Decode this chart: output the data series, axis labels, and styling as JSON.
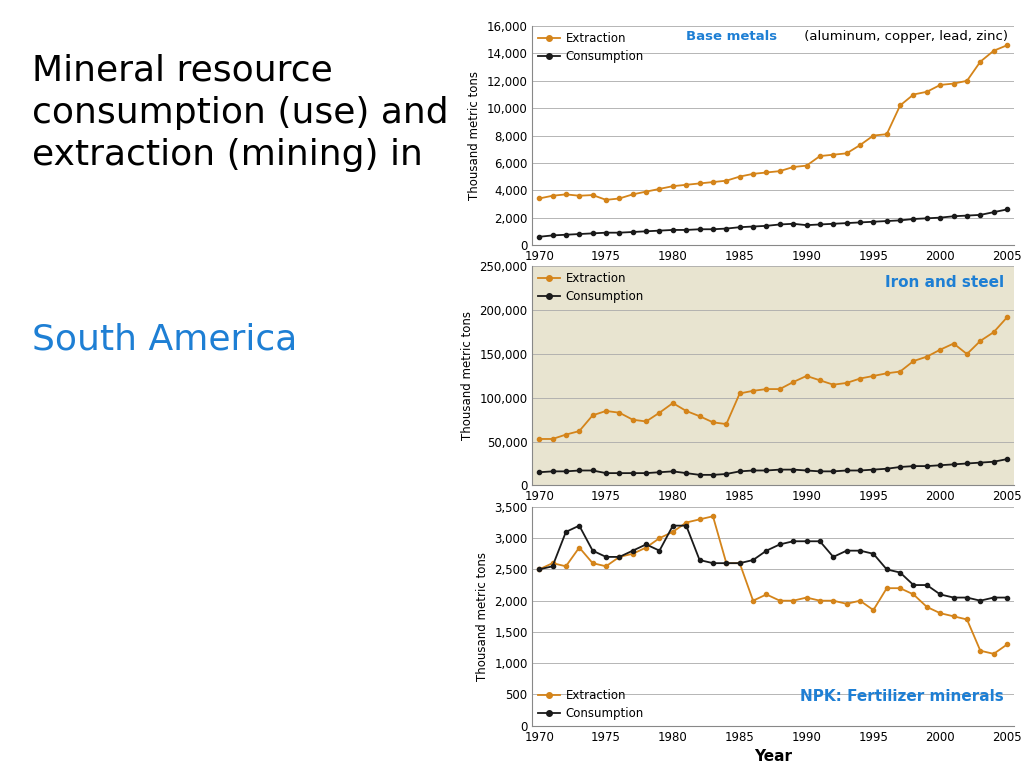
{
  "years": [
    1970,
    1971,
    1972,
    1973,
    1974,
    1975,
    1976,
    1977,
    1978,
    1979,
    1980,
    1981,
    1982,
    1983,
    1984,
    1985,
    1986,
    1987,
    1988,
    1989,
    1990,
    1991,
    1992,
    1993,
    1994,
    1995,
    1996,
    1997,
    1998,
    1999,
    2000,
    2001,
    2002,
    2003,
    2004,
    2005
  ],
  "base_extraction": [
    3400,
    3600,
    3700,
    3600,
    3650,
    3300,
    3400,
    3700,
    3900,
    4100,
    4300,
    4400,
    4500,
    4600,
    4700,
    5000,
    5200,
    5300,
    5400,
    5700,
    5800,
    6500,
    6600,
    6700,
    7300,
    8000,
    8100,
    10200,
    11000,
    11200,
    11700,
    11800,
    12000,
    13400,
    14200,
    14600
  ],
  "base_consumption": [
    600,
    700,
    750,
    800,
    850,
    900,
    900,
    950,
    1000,
    1050,
    1100,
    1100,
    1150,
    1150,
    1200,
    1300,
    1350,
    1400,
    1500,
    1550,
    1450,
    1500,
    1550,
    1600,
    1650,
    1700,
    1750,
    1800,
    1900,
    1950,
    2000,
    2100,
    2150,
    2200,
    2400,
    2600
  ],
  "iron_extraction": [
    53000,
    53000,
    58000,
    62000,
    80000,
    85000,
    83000,
    75000,
    73000,
    83000,
    94000,
    85000,
    79000,
    72000,
    70000,
    105000,
    108000,
    110000,
    110000,
    118000,
    125000,
    120000,
    115000,
    117000,
    122000,
    125000,
    128000,
    130000,
    142000,
    147000,
    155000,
    162000,
    150000,
    165000,
    175000,
    192000
  ],
  "iron_consumption": [
    15000,
    16000,
    16000,
    17000,
    17000,
    14000,
    14000,
    14000,
    14000,
    15000,
    16000,
    14000,
    12000,
    12000,
    13000,
    16000,
    17000,
    17000,
    18000,
    18000,
    17000,
    16000,
    16000,
    17000,
    17000,
    18000,
    19000,
    21000,
    22000,
    22000,
    23000,
    24000,
    25000,
    26000,
    27000,
    30000
  ],
  "npk_extraction": [
    2500,
    2600,
    2550,
    2850,
    2600,
    2550,
    2700,
    2750,
    2850,
    3000,
    3100,
    3250,
    3300,
    3350,
    2600,
    2600,
    2000,
    2100,
    2000,
    2000,
    2050,
    2000,
    2000,
    1950,
    2000,
    1850,
    2200,
    2200,
    2100,
    1900,
    1800,
    1750,
    1700,
    1200,
    1150,
    1300
  ],
  "npk_consumption": [
    2500,
    2550,
    3100,
    3200,
    2800,
    2700,
    2700,
    2800,
    2900,
    2800,
    3200,
    3200,
    2650,
    2600,
    2600,
    2600,
    2650,
    2800,
    2900,
    2950,
    2950,
    2950,
    2700,
    2800,
    2800,
    2750,
    2500,
    2450,
    2250,
    2250,
    2100,
    2050,
    2050,
    2000,
    2050,
    2050
  ],
  "extraction_color": "#d4841a",
  "consumption_color": "#1a1a1a",
  "title_blue": "#1e7fd4",
  "chart1_bg": "#ffffff",
  "chart2_bg": "#e8e4d0",
  "chart3_bg": "#ffffff",
  "chart1_ylim": [
    0,
    16000
  ],
  "chart1_yticks": [
    0,
    2000,
    4000,
    6000,
    8000,
    10000,
    12000,
    14000,
    16000
  ],
  "chart2_ylim": [
    0,
    250000
  ],
  "chart2_yticks": [
    0,
    50000,
    100000,
    150000,
    200000,
    250000
  ],
  "chart3_ylim": [
    0,
    3500
  ],
  "chart3_yticks": [
    0,
    500,
    1000,
    1500,
    2000,
    2500,
    3000,
    3500
  ],
  "xticks": [
    1970,
    1975,
    1980,
    1985,
    1990,
    1995,
    2000,
    2005
  ],
  "xlim": [
    1969.5,
    2005.5
  ],
  "ylabel": "Thousand metric tons",
  "xlabel": "Year",
  "chart1_title_bold": "Base metals",
  "chart1_title_rest": " (aluminum, copper, lead, zinc)",
  "chart2_title": "Iron and steel",
  "chart3_title": "NPK: Fertilizer minerals"
}
